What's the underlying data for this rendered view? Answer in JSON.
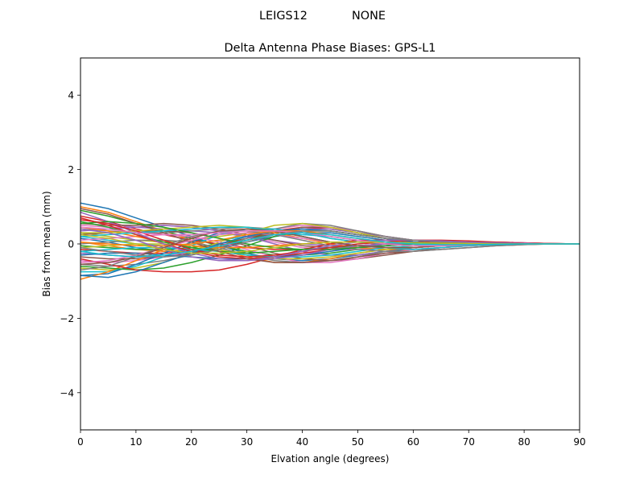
{
  "figure": {
    "suptitle_left": "LEIGS12",
    "suptitle_right": "NONE"
  },
  "chart_data": {
    "type": "line",
    "title": "Delta Antenna Phase Biases: GPS-L1",
    "xlabel": "Elvation angle (degrees)",
    "ylabel": "Bias from mean (mm)",
    "xlim": [
      0,
      90
    ],
    "ylim": [
      -5,
      5
    ],
    "xticks": [
      0,
      10,
      20,
      30,
      40,
      50,
      60,
      70,
      80,
      90
    ],
    "xtick_labels": [
      "0",
      "10",
      "20",
      "30",
      "40",
      "50",
      "60",
      "70",
      "80",
      "90"
    ],
    "yticks": [
      -4,
      -2,
      0,
      2,
      4
    ],
    "ytick_labels": [
      "−4",
      "−2",
      "0",
      "2",
      "4"
    ],
    "grid": false,
    "legend": "none",
    "colors": [
      "#1f77b4",
      "#ff7f0e",
      "#2ca02c",
      "#d62728",
      "#9467bd",
      "#8c564b",
      "#e377c2",
      "#7f7f7f",
      "#bcbd22",
      "#17becf"
    ],
    "x": [
      0,
      5,
      10,
      15,
      20,
      25,
      30,
      35,
      40,
      45,
      50,
      55,
      60,
      65,
      70,
      75,
      80,
      85,
      90
    ],
    "series": [
      {
        "values": [
          1.1,
          0.95,
          0.7,
          0.45,
          0.2,
          -0.05,
          -0.25,
          -0.4,
          -0.45,
          -0.4,
          -0.3,
          -0.2,
          -0.15,
          -0.1,
          -0.05,
          0.0,
          0.0,
          0.0,
          0.0
        ]
      },
      {
        "values": [
          1.0,
          0.85,
          0.6,
          0.35,
          0.1,
          -0.15,
          -0.35,
          -0.5,
          -0.5,
          -0.4,
          -0.25,
          -0.15,
          -0.1,
          -0.05,
          0.0,
          0.0,
          0.0,
          0.0,
          0.0
        ]
      },
      {
        "values": [
          0.9,
          0.75,
          0.55,
          0.35,
          0.15,
          -0.05,
          -0.2,
          -0.3,
          -0.3,
          -0.25,
          -0.15,
          -0.1,
          -0.05,
          0.0,
          0.0,
          0.0,
          0.0,
          0.0,
          0.0
        ]
      },
      {
        "values": [
          0.75,
          0.6,
          0.4,
          0.25,
          0.1,
          0.0,
          -0.1,
          -0.15,
          -0.15,
          -0.1,
          -0.05,
          0.0,
          0.05,
          0.05,
          0.05,
          0.05,
          0.03,
          0.01,
          0.0
        ]
      },
      {
        "values": [
          0.65,
          0.55,
          0.45,
          0.4,
          0.35,
          0.3,
          0.2,
          0.1,
          0.0,
          -0.05,
          -0.05,
          -0.05,
          0.0,
          0.0,
          0.0,
          0.0,
          0.0,
          0.0,
          0.0
        ]
      },
      {
        "values": [
          0.55,
          0.5,
          0.5,
          0.55,
          0.5,
          0.4,
          0.25,
          0.1,
          -0.05,
          -0.1,
          -0.1,
          -0.05,
          0.0,
          0.05,
          0.05,
          0.05,
          0.03,
          0.01,
          0.0
        ]
      },
      {
        "values": [
          0.5,
          0.45,
          0.45,
          0.5,
          0.45,
          0.35,
          0.2,
          0.05,
          -0.1,
          -0.15,
          -0.15,
          -0.1,
          -0.05,
          0.0,
          0.05,
          0.05,
          0.03,
          0.01,
          0.0
        ]
      },
      {
        "values": [
          0.4,
          0.35,
          0.3,
          0.3,
          0.35,
          0.4,
          0.45,
          0.4,
          0.3,
          0.15,
          0.05,
          0.0,
          -0.05,
          -0.05,
          -0.03,
          0.0,
          0.0,
          0.0,
          0.0
        ]
      },
      {
        "values": [
          0.3,
          0.2,
          0.1,
          0.05,
          0.1,
          0.2,
          0.3,
          0.35,
          0.3,
          0.2,
          0.1,
          0.0,
          -0.05,
          -0.05,
          -0.03,
          0.0,
          0.0,
          0.0,
          0.0
        ]
      },
      {
        "values": [
          0.2,
          0.1,
          0.0,
          -0.05,
          0.0,
          0.1,
          0.2,
          0.25,
          0.25,
          0.2,
          0.1,
          0.05,
          0.0,
          0.0,
          0.0,
          0.0,
          0.0,
          0.0,
          0.0
        ]
      },
      {
        "values": [
          0.15,
          0.05,
          -0.1,
          -0.2,
          -0.2,
          -0.1,
          0.05,
          0.2,
          0.3,
          0.3,
          0.2,
          0.1,
          0.05,
          0.0,
          0.0,
          0.0,
          0.0,
          0.0,
          0.0
        ]
      },
      {
        "values": [
          0.05,
          -0.05,
          -0.15,
          -0.2,
          -0.15,
          -0.05,
          0.1,
          0.25,
          0.35,
          0.35,
          0.25,
          0.15,
          0.05,
          0.0,
          0.0,
          0.0,
          0.0,
          0.0,
          0.0
        ]
      },
      {
        "values": [
          -0.05,
          -0.1,
          -0.15,
          -0.15,
          -0.1,
          0.0,
          0.15,
          0.3,
          0.4,
          0.35,
          0.25,
          0.15,
          0.05,
          0.0,
          -0.02,
          -0.02,
          -0.01,
          0.0,
          0.0
        ]
      },
      {
        "values": [
          -0.15,
          -0.2,
          -0.25,
          -0.25,
          -0.2,
          -0.05,
          0.15,
          0.35,
          0.45,
          0.4,
          0.3,
          0.15,
          0.05,
          0.0,
          -0.02,
          -0.02,
          -0.01,
          0.0,
          0.0
        ]
      },
      {
        "values": [
          -0.25,
          -0.3,
          -0.35,
          -0.35,
          -0.25,
          -0.1,
          0.1,
          0.3,
          0.4,
          0.4,
          0.3,
          0.2,
          0.1,
          0.05,
          0.0,
          0.0,
          0.0,
          0.0,
          0.0
        ]
      },
      {
        "values": [
          -0.35,
          -0.4,
          -0.4,
          -0.35,
          -0.25,
          -0.1,
          0.1,
          0.3,
          0.45,
          0.45,
          0.35,
          0.2,
          0.1,
          0.05,
          0.0,
          0.0,
          0.0,
          0.0,
          0.0
        ]
      },
      {
        "values": [
          -0.45,
          -0.5,
          -0.45,
          -0.35,
          -0.2,
          0.0,
          0.2,
          0.4,
          0.5,
          0.45,
          0.35,
          0.2,
          0.1,
          0.05,
          0.0,
          0.0,
          0.0,
          0.0,
          0.0
        ]
      },
      {
        "values": [
          -0.55,
          -0.6,
          -0.55,
          -0.45,
          -0.3,
          -0.1,
          0.15,
          0.4,
          0.55,
          0.5,
          0.35,
          0.2,
          0.1,
          0.05,
          0.0,
          0.0,
          0.0,
          0.0,
          0.0
        ]
      },
      {
        "values": [
          -0.65,
          -0.7,
          -0.65,
          -0.5,
          -0.25,
          0.05,
          0.3,
          0.5,
          0.55,
          0.45,
          0.3,
          0.15,
          0.05,
          0.0,
          0.0,
          0.0,
          0.0,
          0.0,
          0.0
        ]
      },
      {
        "values": [
          -0.75,
          -0.75,
          -0.6,
          -0.35,
          -0.05,
          0.25,
          0.4,
          0.4,
          0.3,
          0.15,
          0.05,
          0.0,
          -0.05,
          -0.05,
          -0.03,
          0.0,
          0.0,
          0.0,
          0.0
        ]
      },
      {
        "values": [
          -0.85,
          -0.8,
          -0.55,
          -0.25,
          0.05,
          0.3,
          0.4,
          0.35,
          0.2,
          0.05,
          -0.05,
          -0.1,
          -0.1,
          -0.05,
          -0.03,
          0.0,
          0.0,
          0.0,
          0.0
        ]
      },
      {
        "values": [
          -0.95,
          -0.75,
          -0.45,
          -0.15,
          0.15,
          0.35,
          0.4,
          0.3,
          0.15,
          0.0,
          -0.1,
          -0.15,
          -0.15,
          -0.1,
          -0.05,
          -0.02,
          0.0,
          0.0,
          0.0
        ]
      },
      {
        "values": [
          -0.6,
          -0.65,
          -0.7,
          -0.65,
          -0.5,
          -0.3,
          -0.05,
          0.2,
          0.35,
          0.35,
          0.25,
          0.15,
          0.05,
          0.0,
          0.0,
          0.0,
          0.0,
          0.0,
          0.0
        ]
      },
      {
        "values": [
          -0.4,
          -0.55,
          -0.7,
          -0.75,
          -0.75,
          -0.7,
          -0.55,
          -0.35,
          -0.15,
          0.0,
          0.1,
          0.1,
          0.1,
          0.05,
          0.03,
          0.01,
          0.0,
          0.0,
          0.0
        ]
      },
      {
        "values": [
          0.35,
          0.4,
          0.45,
          0.5,
          0.45,
          0.35,
          0.2,
          0.0,
          -0.2,
          -0.3,
          -0.3,
          -0.2,
          -0.1,
          -0.05,
          0.0,
          0.0,
          0.0,
          0.0,
          0.0
        ]
      },
      {
        "values": [
          0.25,
          0.3,
          0.35,
          0.35,
          0.3,
          0.15,
          -0.05,
          -0.25,
          -0.4,
          -0.45,
          -0.4,
          -0.3,
          -0.2,
          -0.1,
          -0.05,
          -0.02,
          0.0,
          0.0,
          0.0
        ]
      },
      {
        "values": [
          0.1,
          0.15,
          0.2,
          0.25,
          0.2,
          0.05,
          -0.15,
          -0.35,
          -0.5,
          -0.5,
          -0.4,
          -0.25,
          -0.15,
          -0.1,
          -0.05,
          -0.02,
          0.0,
          0.0,
          0.0
        ]
      },
      {
        "values": [
          0.0,
          0.05,
          0.1,
          0.1,
          0.05,
          -0.1,
          -0.3,
          -0.45,
          -0.5,
          -0.45,
          -0.35,
          -0.2,
          -0.1,
          -0.05,
          0.0,
          0.0,
          0.0,
          0.0,
          0.0
        ]
      },
      {
        "values": [
          -0.1,
          -0.05,
          0.0,
          0.0,
          -0.05,
          -0.15,
          -0.3,
          -0.4,
          -0.4,
          -0.35,
          -0.25,
          -0.15,
          -0.05,
          0.0,
          0.0,
          0.0,
          0.0,
          0.0,
          0.0
        ]
      },
      {
        "values": [
          -0.2,
          -0.15,
          -0.1,
          -0.1,
          -0.15,
          -0.2,
          -0.3,
          -0.35,
          -0.35,
          -0.3,
          -0.2,
          -0.1,
          -0.05,
          0.0,
          0.0,
          0.0,
          0.0,
          0.0,
          0.0
        ]
      },
      {
        "values": [
          -0.3,
          -0.25,
          -0.25,
          -0.3,
          -0.35,
          -0.4,
          -0.4,
          -0.35,
          -0.3,
          -0.2,
          -0.1,
          -0.05,
          0.0,
          0.0,
          0.0,
          0.0,
          0.0,
          0.0,
          0.0
        ]
      },
      {
        "values": [
          0.45,
          0.35,
          0.2,
          0.05,
          -0.05,
          -0.1,
          -0.1,
          -0.05,
          0.0,
          0.05,
          0.05,
          0.05,
          0.03,
          0.02,
          0.01,
          0.0,
          0.0,
          0.0,
          0.0
        ]
      },
      {
        "values": [
          0.6,
          0.45,
          0.25,
          0.05,
          -0.1,
          -0.2,
          -0.25,
          -0.2,
          -0.15,
          -0.1,
          -0.05,
          0.0,
          0.0,
          0.0,
          0.0,
          0.0,
          0.0,
          0.0,
          0.0
        ]
      },
      {
        "values": [
          0.7,
          0.5,
          0.25,
          0.0,
          -0.2,
          -0.35,
          -0.4,
          -0.35,
          -0.25,
          -0.15,
          -0.05,
          0.0,
          0.0,
          0.0,
          0.0,
          0.0,
          0.0,
          0.0,
          0.0
        ]
      },
      {
        "values": [
          0.85,
          0.6,
          0.3,
          0.0,
          -0.25,
          -0.4,
          -0.45,
          -0.4,
          -0.3,
          -0.15,
          -0.05,
          0.0,
          0.02,
          0.02,
          0.01,
          0.0,
          0.0,
          0.0,
          0.0
        ]
      },
      {
        "values": [
          0.95,
          0.8,
          0.55,
          0.3,
          0.05,
          -0.2,
          -0.4,
          -0.5,
          -0.5,
          -0.45,
          -0.35,
          -0.25,
          -0.2,
          -0.15,
          -0.1,
          -0.05,
          -0.02,
          0.0,
          0.0
        ]
      },
      {
        "values": [
          -0.5,
          -0.45,
          -0.3,
          -0.1,
          0.1,
          0.25,
          0.3,
          0.25,
          0.15,
          0.05,
          -0.05,
          -0.1,
          -0.1,
          -0.05,
          -0.03,
          0.0,
          0.0,
          0.0,
          0.0
        ]
      },
      {
        "values": [
          -0.7,
          -0.6,
          -0.35,
          -0.05,
          0.2,
          0.35,
          0.35,
          0.25,
          0.1,
          -0.05,
          -0.15,
          -0.2,
          -0.2,
          -0.15,
          -0.1,
          -0.05,
          -0.02,
          0.0,
          0.0
        ]
      },
      {
        "values": [
          0.3,
          0.3,
          0.35,
          0.4,
          0.45,
          0.5,
          0.45,
          0.35,
          0.2,
          0.05,
          -0.05,
          -0.1,
          -0.1,
          -0.05,
          -0.03,
          0.0,
          0.0,
          0.0,
          0.0
        ]
      },
      {
        "values": [
          0.2,
          0.25,
          0.3,
          0.35,
          0.4,
          0.45,
          0.45,
          0.35,
          0.2,
          0.05,
          -0.05,
          -0.1,
          -0.15,
          -0.1,
          -0.05,
          -0.02,
          0.0,
          0.0,
          0.0
        ]
      },
      {
        "values": [
          -0.85,
          -0.9,
          -0.75,
          -0.5,
          -0.25,
          0.0,
          0.2,
          0.35,
          0.4,
          0.35,
          0.25,
          0.15,
          0.05,
          0.0,
          0.0,
          0.0,
          0.0,
          0.0,
          0.0
        ]
      },
      {
        "values": [
          0.05,
          0.0,
          -0.05,
          -0.05,
          0.0,
          0.1,
          0.25,
          0.35,
          0.35,
          0.25,
          0.15,
          0.05,
          0.0,
          0.0,
          0.0,
          0.0,
          0.0,
          0.0,
          0.0
        ]
      },
      {
        "values": [
          0.55,
          0.6,
          0.55,
          0.45,
          0.3,
          0.15,
          0.0,
          -0.1,
          -0.15,
          -0.15,
          -0.1,
          -0.05,
          0.0,
          0.02,
          0.02,
          0.01,
          0.0,
          0.0,
          0.0
        ]
      },
      {
        "values": [
          0.65,
          0.55,
          0.35,
          0.1,
          -0.15,
          -0.3,
          -0.35,
          -0.3,
          -0.2,
          -0.1,
          0.0,
          0.05,
          0.1,
          0.1,
          0.08,
          0.05,
          0.02,
          0.01,
          0.0
        ]
      },
      {
        "values": [
          0.4,
          0.3,
          0.1,
          -0.15,
          -0.35,
          -0.45,
          -0.45,
          -0.35,
          -0.2,
          -0.05,
          0.05,
          0.1,
          0.1,
          0.08,
          0.05,
          0.03,
          0.01,
          0.0,
          0.0
        ]
      },
      {
        "values": [
          -0.55,
          -0.5,
          -0.35,
          -0.1,
          0.15,
          0.35,
          0.4,
          0.35,
          0.2,
          0.05,
          -0.05,
          -0.1,
          -0.1,
          -0.05,
          -0.03,
          -0.01,
          0.0,
          0.0,
          0.0
        ]
      },
      {
        "values": [
          0.45,
          0.4,
          0.3,
          0.25,
          0.25,
          0.3,
          0.35,
          0.35,
          0.3,
          0.2,
          0.1,
          0.0,
          -0.05,
          -0.05,
          -0.03,
          0.0,
          0.0,
          0.0,
          0.0
        ]
      },
      {
        "values": [
          -0.1,
          -0.2,
          -0.3,
          -0.35,
          -0.3,
          -0.15,
          0.05,
          0.25,
          0.35,
          0.35,
          0.25,
          0.15,
          0.1,
          0.05,
          0.02,
          0.01,
          0.0,
          0.0,
          0.0
        ]
      },
      {
        "values": [
          0.25,
          0.15,
          0.0,
          -0.15,
          -0.25,
          -0.25,
          -0.2,
          -0.1,
          0.0,
          0.05,
          0.05,
          0.05,
          0.03,
          0.02,
          0.01,
          0.0,
          0.0,
          0.0,
          0.0
        ]
      },
      {
        "values": [
          -0.2,
          -0.3,
          -0.35,
          -0.3,
          -0.2,
          -0.05,
          0.1,
          0.25,
          0.3,
          0.25,
          0.15,
          0.05,
          0.0,
          -0.02,
          -0.02,
          -0.01,
          0.0,
          0.0,
          0.0
        ]
      }
    ]
  }
}
